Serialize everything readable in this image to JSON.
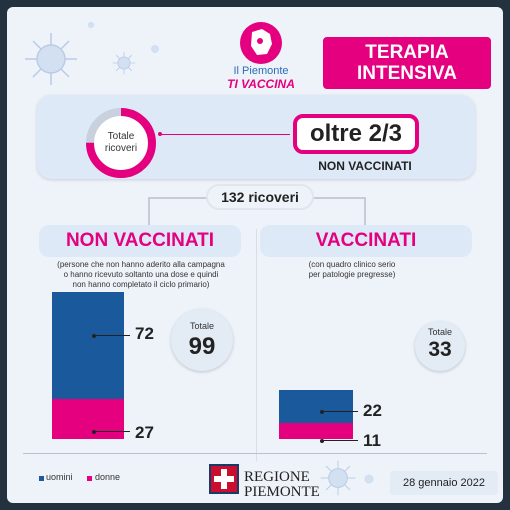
{
  "logo": {
    "subtitle": "Il Piemonte",
    "title": "TI VACCINA"
  },
  "header": {
    "title_line1": "TERAPIA",
    "title_line2": "INTENSIVA"
  },
  "summary": {
    "ring_label_line1": "Totale",
    "ring_label_line2": "ricoveri",
    "share_non_vaccinated": 0.75,
    "headline": "oltre 2/3",
    "headline_sub": "NON VACCINATI"
  },
  "total_ricoveri": "132 ricoveri",
  "non_vaccinati": {
    "title": "NON VACCINATI",
    "note_line1": "(persone che non hanno aderito alla campagna",
    "note_line2": "o hanno ricevuto soltanto una dose e quindi",
    "note_line3": "non hanno completato il ciclo primario)",
    "total_label": "Totale",
    "total": "99",
    "men": "72",
    "women": "27"
  },
  "vaccinati": {
    "title": "VACCINATI",
    "note_line1": "(con quadro clinico serio",
    "note_line2": "per patologie pregresse)",
    "total_label": "Totale",
    "total": "33",
    "men": "22",
    "women": "11"
  },
  "legend": {
    "men": "uomini",
    "women": "donne"
  },
  "colors": {
    "men": "#1a5a9c",
    "women": "#e4007e",
    "accent": "#e4007e"
  },
  "footer": {
    "regione_line1": "REGIONE",
    "regione_line2": "PIEMONTE",
    "date": "28 gennaio 2022"
  }
}
